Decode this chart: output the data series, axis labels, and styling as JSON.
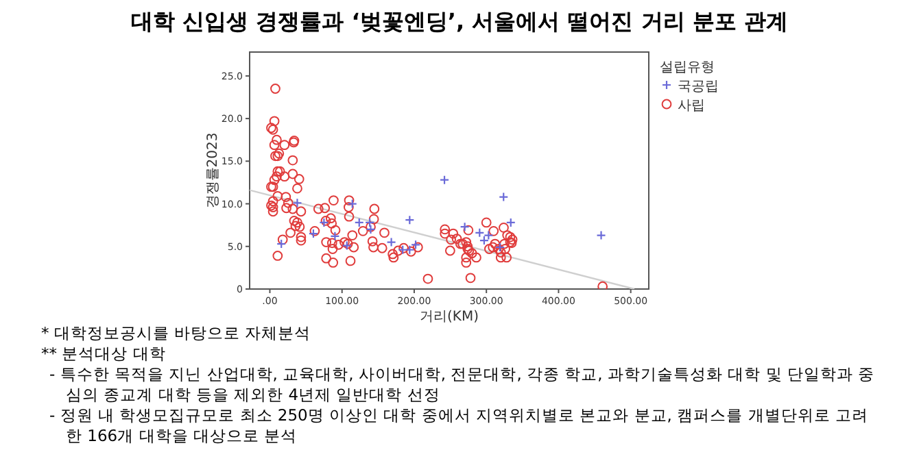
{
  "chart_data": {
    "type": "scatter",
    "title": "대학 신입생 경쟁률과 ‘벚꽃엔딩’, 서울에서 떨어진 거리 분포 관계",
    "xlabel": "거리(KM)",
    "ylabel": "경쟁률2023",
    "legend_title": "설립유형",
    "legend": "right",
    "xlim": [
      -28,
      525
    ],
    "ylim": [
      0,
      27.8
    ],
    "xticks": [
      {
        "value": 0,
        "label": ".00"
      },
      {
        "value": 100,
        "label": "100.00"
      },
      {
        "value": 200,
        "label": "200.00"
      },
      {
        "value": 300,
        "label": "300.00"
      },
      {
        "value": 400,
        "label": "400.00"
      },
      {
        "value": 500,
        "label": "500.00"
      }
    ],
    "yticks": [
      0,
      {
        "value": 5,
        "label": "5.0"
      },
      {
        "value": 10,
        "label": "10.0"
      },
      {
        "value": 15,
        "label": "15.0"
      },
      {
        "value": 20,
        "label": "20.0"
      },
      {
        "value": 25,
        "label": "25.0"
      }
    ],
    "series": [
      {
        "name": "국공립",
        "color": "#6a6ad8",
        "marker": "cross",
        "x": [
          38,
          15.9,
          60.3,
          75,
          90.2,
          106.7,
          114.3,
          123.8,
          138.4,
          139.7,
          168.3,
          193.7,
          184.1,
          193.7,
          202,
          241.9,
          270,
          290.6,
          296.9,
          303,
          323.8,
          333.8,
          318.8,
          459
        ],
        "values": [
          10.1,
          5.3,
          6.5,
          7.8,
          6.2,
          5.1,
          10,
          7.8,
          7.8,
          7,
          5.5,
          8.1,
          4.6,
          4.6,
          5.2,
          12.8,
          7.3,
          6.6,
          5.7,
          6.3,
          10.8,
          7.8,
          4.9,
          6.3
        ]
      },
      {
        "name": "사립",
        "color": "#e03c3c",
        "marker": "circle",
        "x": [
          7.6,
          6.3,
          1.9,
          4.4,
          9.5,
          6.3,
          20.3,
          33.7,
          33,
          7.6,
          10.8,
          12.7,
          31.7,
          31.7,
          10.8,
          14,
          9.5,
          6.3,
          20.3,
          4.4,
          1.9,
          40.6,
          38,
          10.8,
          4.4,
          1.9,
          4.4,
          4.4,
          22.2,
          25.4,
          22.9,
          31.7,
          43.2,
          38,
          35.6,
          41.3,
          33.7,
          28.6,
          17.8,
          43.2,
          43.2,
          10.8,
          67.3,
          76.2,
          88.3,
          62.2,
          77.5,
          84.4,
          85.7,
          90.8,
          78.1,
          86.3,
          95.2,
          87,
          78.1,
          87.6,
          109.8,
          109.2,
          109.8,
          114.3,
          108,
          116.2,
          111.7,
          103.5,
          129,
          139.7,
          144.8,
          144.1,
          142.2,
          143.5,
          158.7,
          155.6,
          171.4,
          170.2,
          185.4,
          177.8,
          195.6,
          205.1,
          219,
          242.5,
          242.5,
          251,
          249.8,
          254,
          259,
          264,
          267,
          275,
          272,
          274,
          274,
          276,
          272,
          272,
          280,
          286,
          278,
          300,
          304,
          309,
          310,
          312,
          317,
          320,
          324,
          325,
          328,
          329,
          333,
          333,
          335,
          326,
          320,
          336,
          461
        ],
        "values": [
          23.5,
          19.7,
          18.9,
          18.7,
          17.5,
          16.9,
          16.9,
          17.4,
          17.2,
          15.6,
          15.6,
          15.9,
          15.1,
          13.5,
          13.8,
          13.8,
          13.2,
          12.8,
          13.2,
          12,
          12,
          12.9,
          11.8,
          10.9,
          10.3,
          9.8,
          9.6,
          9.1,
          10.8,
          10.1,
          9.5,
          9.4,
          9.1,
          7.8,
          7.4,
          7.3,
          8,
          6.6,
          5.8,
          6.1,
          5.7,
          3.9,
          9.4,
          9.5,
          10.4,
          6.8,
          8,
          8.3,
          7.7,
          6.9,
          5.5,
          5.4,
          5.2,
          4.7,
          3.6,
          3.1,
          10.4,
          9.6,
          8.5,
          6.3,
          5.3,
          4.9,
          3.3,
          5.5,
          6.8,
          7.3,
          9.4,
          8.2,
          5.6,
          4.9,
          6.6,
          4.8,
          3.7,
          4.1,
          4.8,
          4.5,
          4.4,
          4.9,
          1.2,
          7,
          6.5,
          5.8,
          4.5,
          6.5,
          5.9,
          5.3,
          5.3,
          6.9,
          5.5,
          5,
          4.7,
          4.5,
          3.7,
          3.1,
          4.2,
          3.7,
          1.3,
          7.8,
          4.7,
          4.9,
          6.8,
          5.3,
          4.7,
          3.7,
          7.2,
          5.3,
          3.7,
          6.3,
          6.1,
          5.5,
          5.4,
          4.7,
          4.3,
          5.8,
          0.3
        ]
      },
      {
        "type": "line",
        "color": "#cfcfcf",
        "x": [
          -28,
          505
        ],
        "values": [
          11.6,
          0
        ]
      }
    ],
    "annotations": [
      "* 대학정보공시를 바탕으로 자체분석",
      "** 분석대상 대학",
      "- 특수한 목적을 지닌 산업대학, 교육대학, 사이버대학, 전문대학, 각종 학교, 과학기술특성화 대학 및 단일학과 중심의 종교계 대학 등을 제외한 4년제 일반대학 선정",
      "- 정원 내 학생모집규모로 최소 250명 이상인 대학 중에서 지역위치별로 본교와 분교, 캠퍼스를 개별단위로 고려한 166개 대학을 대상으로 분석"
    ]
  }
}
